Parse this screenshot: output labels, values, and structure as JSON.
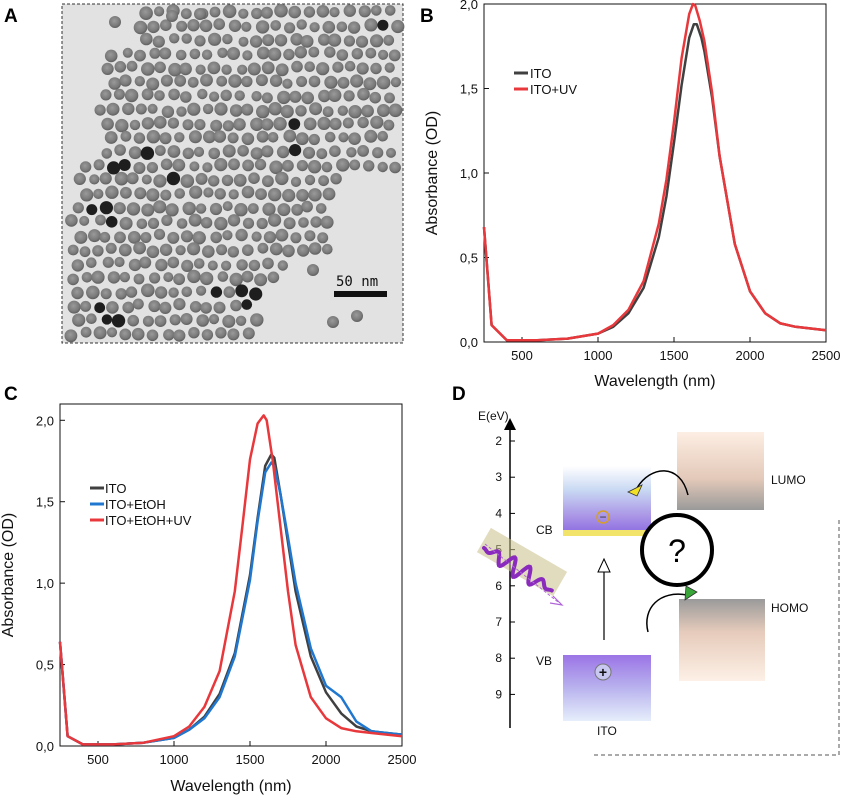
{
  "panels": {
    "a": "A",
    "b": "B",
    "c": "C",
    "d": "D"
  },
  "panel_a": {
    "scale_bar": "50 nm",
    "image": "TEM micrograph of nanocrystals"
  },
  "colors": {
    "ito": "#404040",
    "ito_uv": "#e8383c",
    "ito_etoh": "#1f77d0",
    "ito_etoh_uv": "#e8383c"
  },
  "chart_data": [
    {
      "type": "line",
      "panel": "B",
      "xlabel": "Wavelength (nm)",
      "ylabel": "Absorbance (OD)",
      "xlim": [
        250,
        2500
      ],
      "ylim": [
        0,
        2.0
      ],
      "xticks": [
        500,
        1000,
        1500,
        2000,
        2500
      ],
      "yticks": [
        0,
        0.5,
        1.0,
        1.5,
        2.0
      ],
      "yticklabels": [
        "0,0",
        "0,5",
        "1,0",
        "1,5",
        "2,0"
      ],
      "legend": "top-left",
      "series": [
        {
          "name": "ITO",
          "color": "#404040",
          "x": [
            250,
            300,
            400,
            600,
            800,
            1000,
            1100,
            1200,
            1300,
            1400,
            1450,
            1500,
            1550,
            1600,
            1630,
            1650,
            1680,
            1700,
            1750,
            1800,
            1900,
            2000,
            2100,
            2200,
            2300,
            2400,
            2500
          ],
          "y": [
            0.68,
            0.1,
            0.01,
            0.01,
            0.02,
            0.05,
            0.09,
            0.17,
            0.32,
            0.62,
            0.86,
            1.18,
            1.52,
            1.8,
            1.88,
            1.88,
            1.8,
            1.72,
            1.45,
            1.1,
            0.58,
            0.3,
            0.17,
            0.11,
            0.09,
            0.08,
            0.07
          ]
        },
        {
          "name": "ITO+UV",
          "color": "#e8383c",
          "x": [
            250,
            300,
            400,
            600,
            800,
            1000,
            1100,
            1200,
            1300,
            1400,
            1450,
            1500,
            1550,
            1600,
            1625,
            1640,
            1670,
            1700,
            1750,
            1800,
            1900,
            2000,
            2100,
            2200,
            2300,
            2400,
            2500
          ],
          "y": [
            0.68,
            0.1,
            0.01,
            0.01,
            0.02,
            0.05,
            0.1,
            0.19,
            0.36,
            0.7,
            0.96,
            1.3,
            1.68,
            1.94,
            2.0,
            1.99,
            1.9,
            1.78,
            1.48,
            1.1,
            0.58,
            0.3,
            0.17,
            0.11,
            0.09,
            0.08,
            0.07
          ]
        }
      ]
    },
    {
      "type": "line",
      "panel": "C",
      "xlabel": "Wavelength (nm)",
      "ylabel": "Absorbance (OD)",
      "xlim": [
        250,
        2500
      ],
      "ylim": [
        0,
        2.1
      ],
      "xticks": [
        500,
        1000,
        1500,
        2000,
        2500
      ],
      "yticks": [
        0,
        0.5,
        1.0,
        1.5,
        2.0
      ],
      "yticklabels": [
        "0,0",
        "0,5",
        "1,0",
        "1,5",
        "2,0"
      ],
      "legend": "middle-left",
      "series": [
        {
          "name": "ITO",
          "color": "#404040",
          "x": [
            250,
            300,
            400,
            600,
            800,
            1000,
            1100,
            1200,
            1300,
            1400,
            1500,
            1550,
            1600,
            1640,
            1660,
            1700,
            1750,
            1800,
            1900,
            2000,
            2100,
            2200,
            2300,
            2400,
            2500
          ],
          "y": [
            0.64,
            0.06,
            0.01,
            0.01,
            0.02,
            0.05,
            0.1,
            0.18,
            0.32,
            0.57,
            1.05,
            1.4,
            1.72,
            1.79,
            1.77,
            1.55,
            1.25,
            0.95,
            0.55,
            0.33,
            0.2,
            0.12,
            0.09,
            0.08,
            0.07
          ]
        },
        {
          "name": "ITO+EtOH",
          "color": "#1f77d0",
          "x": [
            250,
            300,
            400,
            600,
            800,
            1000,
            1100,
            1200,
            1300,
            1400,
            1500,
            1550,
            1600,
            1640,
            1660,
            1700,
            1750,
            1800,
            1900,
            2000,
            2100,
            2200,
            2300,
            2400,
            2500
          ],
          "y": [
            0.64,
            0.06,
            0.01,
            0.01,
            0.02,
            0.05,
            0.1,
            0.17,
            0.3,
            0.55,
            1.02,
            1.38,
            1.68,
            1.74,
            1.72,
            1.55,
            1.28,
            1.0,
            0.6,
            0.37,
            0.3,
            0.15,
            0.09,
            0.08,
            0.07
          ]
        },
        {
          "name": "ITO+EtOH+UV",
          "color": "#e8383c",
          "x": [
            250,
            300,
            400,
            600,
            800,
            1000,
            1100,
            1200,
            1300,
            1400,
            1450,
            1500,
            1550,
            1590,
            1610,
            1650,
            1700,
            1750,
            1800,
            1900,
            2000,
            2100,
            2200,
            2300,
            2400,
            2500
          ],
          "y": [
            0.64,
            0.06,
            0.01,
            0.01,
            0.02,
            0.06,
            0.12,
            0.24,
            0.46,
            0.95,
            1.35,
            1.76,
            1.98,
            2.03,
            2.0,
            1.75,
            1.35,
            0.95,
            0.62,
            0.3,
            0.17,
            0.11,
            0.09,
            0.08,
            0.07,
            0.06
          ]
        }
      ]
    },
    {
      "type": "diagram",
      "panel": "D",
      "ylabel": "E(eV)",
      "yticks": [
        2,
        3,
        4,
        5,
        6,
        7,
        8,
        9
      ],
      "labels": {
        "cb": "CB",
        "vb": "VB",
        "ito": "ITO",
        "lumo": "LUMO",
        "homo": "HOMO",
        "question": "?",
        "minus": "−",
        "plus": "+"
      }
    }
  ]
}
